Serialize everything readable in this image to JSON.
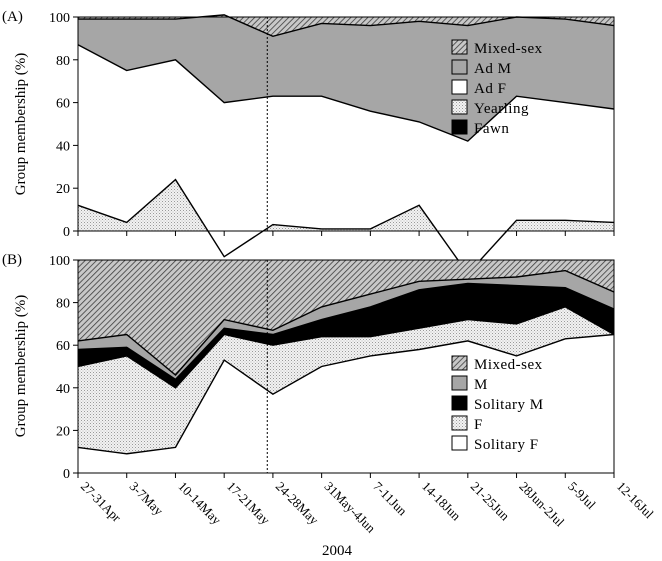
{
  "figure": {
    "xlabel": "2004"
  },
  "chart_data": [
    {
      "type": "area",
      "panel": "(A)",
      "ylabel": "Group membership (%)",
      "ylim": [
        0,
        100
      ],
      "yticks": [
        0,
        20,
        40,
        60,
        80,
        100
      ],
      "categories": [
        "27-31Apr",
        "3-7May",
        "10-14May",
        "17-21May",
        "24-28May",
        "31May-4Jun",
        "7-11Jun",
        "14-18Jun",
        "21-25Jun",
        "28Jun-2Jul",
        "5-9Jul",
        "12-16Jul"
      ],
      "reference_line": {
        "between": [
          "24-28May",
          "31May-4Jun"
        ],
        "style": "dashed"
      },
      "stack_order": "bottom-to-top",
      "series": [
        {
          "name": "Yearling",
          "fill": "stipple-light",
          "values": [
            12,
            4,
            24,
            -12,
            3,
            1,
            1,
            12,
            -20,
            5,
            5,
            4
          ]
        },
        {
          "name": "Ad F",
          "fill": "#ffffff",
          "values": [
            75,
            71,
            56,
            72,
            60,
            62,
            55,
            39,
            62,
            58,
            55,
            53
          ]
        },
        {
          "name": "Ad M",
          "fill": "#a6a6a6",
          "values": [
            12,
            24,
            19,
            41,
            28,
            34,
            40,
            47,
            54,
            37,
            39,
            39
          ]
        },
        {
          "name": "Fawn",
          "fill": "#000000",
          "values": [
            0,
            0,
            0,
            0,
            0,
            0,
            0,
            0,
            0,
            0,
            0,
            0
          ]
        },
        {
          "name": "Mixed-sex",
          "fill": "hatch",
          "values": [
            1,
            1,
            1,
            -1,
            9,
            3,
            4,
            2,
            4,
            0,
            1,
            4
          ]
        }
      ],
      "legend": {
        "position": "right",
        "entries": [
          "Mixed-sex",
          "Ad M",
          "Ad F",
          "Yearling",
          "Fawn"
        ]
      }
    },
    {
      "type": "area",
      "panel": "(B)",
      "ylabel": "Group membership (%)",
      "ylim": [
        0,
        100
      ],
      "yticks": [
        0,
        20,
        40,
        60,
        80,
        100
      ],
      "categories": [
        "27-31Apr",
        "3-7May",
        "10-14May",
        "17-21May",
        "24-28May",
        "31May-4Jun",
        "7-11Jun",
        "14-18Jun",
        "21-25Jun",
        "28Jun-2Jul",
        "5-9Jul",
        "12-16Jul"
      ],
      "reference_line": {
        "between": [
          "24-28May",
          "31May-4Jun"
        ],
        "style": "dashed"
      },
      "stack_order": "bottom-to-top",
      "series": [
        {
          "name": "Solitary F",
          "fill": "#ffffff",
          "values": [
            12,
            9,
            12,
            53,
            37,
            50,
            55,
            58,
            62,
            55,
            63,
            65
          ]
        },
        {
          "name": "F",
          "fill": "stipple-light",
          "values": [
            38,
            46,
            28,
            12,
            23,
            14,
            9,
            10,
            10,
            15,
            15,
            0
          ]
        },
        {
          "name": "Solitary M",
          "fill": "#000000",
          "values": [
            8,
            4,
            4,
            3,
            5,
            8,
            14,
            18,
            17,
            18,
            9,
            12
          ]
        },
        {
          "name": "M",
          "fill": "#a6a6a6",
          "values": [
            4,
            6,
            2,
            4,
            2,
            6,
            6,
            4,
            2,
            4,
            8,
            8
          ]
        },
        {
          "name": "Mixed-sex",
          "fill": "hatch",
          "values": [
            38,
            35,
            54,
            28,
            33,
            22,
            16,
            10,
            9,
            8,
            5,
            15
          ]
        }
      ],
      "legend": {
        "position": "bottom-right",
        "entries": [
          "Mixed-sex",
          "M",
          "Solitary M",
          "F",
          "Solitary F"
        ]
      }
    }
  ]
}
